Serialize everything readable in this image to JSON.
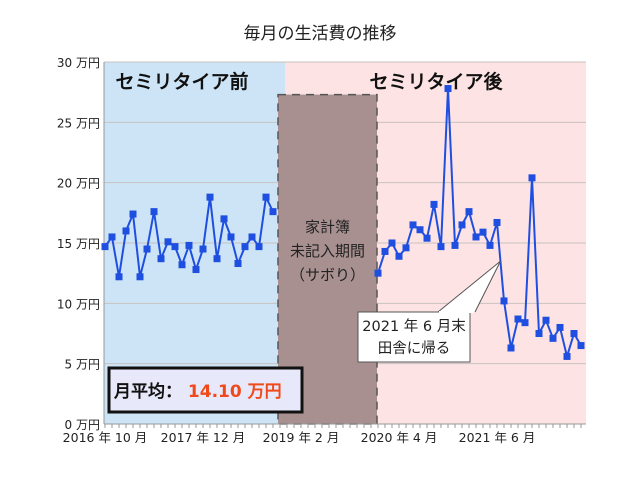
{
  "chart_data": {
    "type": "line",
    "title": "毎月の生活費の推移",
    "ylim": [
      0,
      30
    ],
    "yticks": [
      0,
      5,
      10,
      15,
      20,
      25,
      30
    ],
    "ytick_suffix": " 万円",
    "xlim": [
      "2016-10",
      "2022-06"
    ],
    "xtick_labels": [
      {
        "date": "2016-10",
        "label": "2016 年 10 月"
      },
      {
        "date": "2017-12",
        "label": "2017 年 12 月"
      },
      {
        "date": "2019-02",
        "label": "2019 年 2 月"
      },
      {
        "date": "2020-04",
        "label": "2020 年 4 月"
      },
      {
        "date": "2021-06",
        "label": "2021 年 6 月"
      }
    ],
    "grid": true,
    "series_color": "#1f4fe0",
    "series": [
      {
        "start": "2016-10",
        "values": [
          14.7,
          15.5,
          12.2,
          16.0,
          17.4,
          12.2,
          14.5,
          17.6,
          13.7,
          15.1,
          14.7,
          13.2,
          14.8,
          12.8,
          14.5,
          18.8,
          13.7,
          17.0,
          15.5,
          13.3,
          14.7,
          15.5,
          14.7,
          18.8,
          17.6
        ]
      },
      {
        "start": "2020-01",
        "values": [
          12.5,
          14.3,
          15.0,
          13.9,
          14.6,
          16.5,
          16.1,
          15.4,
          18.2,
          14.7,
          27.8,
          14.8,
          16.5,
          17.6,
          15.5,
          15.9,
          14.8,
          16.7,
          10.2,
          6.3,
          8.7,
          8.4,
          20.4,
          7.5,
          8.6,
          7.1,
          8.0,
          5.6,
          7.5,
          6.5
        ]
      }
    ],
    "regions": [
      {
        "label": "セミリタイア前",
        "from": "2016-10",
        "to": "2018-12",
        "color": "#cce4f5"
      },
      {
        "label": "家計簿\n未記入期間\n（サボり）",
        "from": "2018-12",
        "to": "2020-01",
        "top": 27.3,
        "color": "#a89090"
      },
      {
        "label": "セミリタイア後",
        "from": "2018-12",
        "to": "2022-06",
        "color": "#fde3e3"
      }
    ],
    "annotations": [
      {
        "text": "2021 年 6 月末\n田舎に帰る",
        "date": "2021-06",
        "value": 13.5
      },
      {
        "text_label": "月平均：",
        "text_value": "14.10 万円",
        "value_color": "#f04a1a"
      }
    ]
  }
}
